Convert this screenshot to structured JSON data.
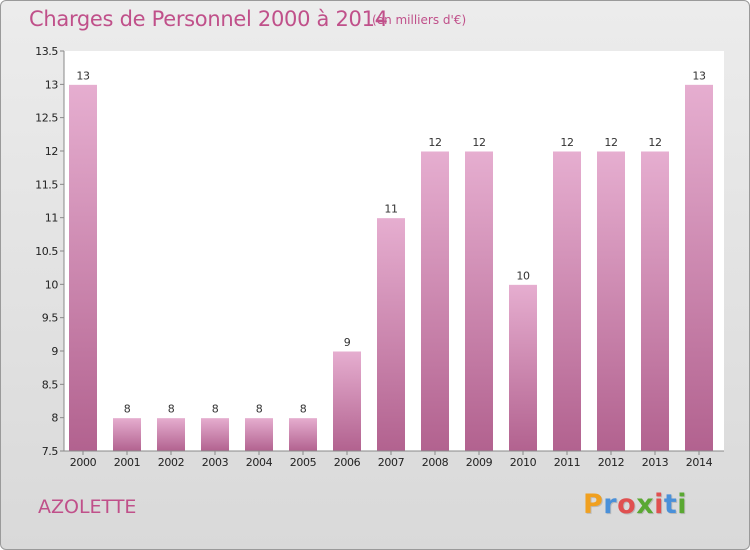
{
  "title": "Charges de Personnel 2000 à 2014",
  "subtitle": "(en milliers d'€)",
  "commune": "AZOLETTE",
  "logo": {
    "letters": [
      "P",
      "r",
      "o",
      "x",
      "i",
      "t",
      "i"
    ],
    "colors": [
      "#f0a020",
      "#4a90d9",
      "#e05050",
      "#5aa832",
      "#e05050",
      "#4a90d9",
      "#5aa832"
    ]
  },
  "colors": {
    "bar_top": "#e6aed0",
    "bar_bottom": "#b2628f",
    "title": "#c0508a",
    "plot_bg": "#ffffff"
  },
  "chart_data": {
    "type": "bar",
    "title": "Charges de Personnel 2000 à 2014",
    "subtitle": "(en milliers d'€)",
    "categories": [
      "2000",
      "2001",
      "2002",
      "2003",
      "2004",
      "2005",
      "2006",
      "2007",
      "2008",
      "2009",
      "2010",
      "2011",
      "2012",
      "2013",
      "2014"
    ],
    "values": [
      13,
      8,
      8,
      8,
      8,
      8,
      9,
      11,
      12,
      12,
      10,
      12,
      12,
      12,
      13
    ],
    "ylim": [
      7.5,
      13.5
    ],
    "yticks": [
      "7.5",
      "8",
      "8.5",
      "9",
      "9.5",
      "10",
      "10.5",
      "11",
      "11.5",
      "12",
      "12.5",
      "13",
      "13.5"
    ],
    "grid": false,
    "legend": "none"
  }
}
